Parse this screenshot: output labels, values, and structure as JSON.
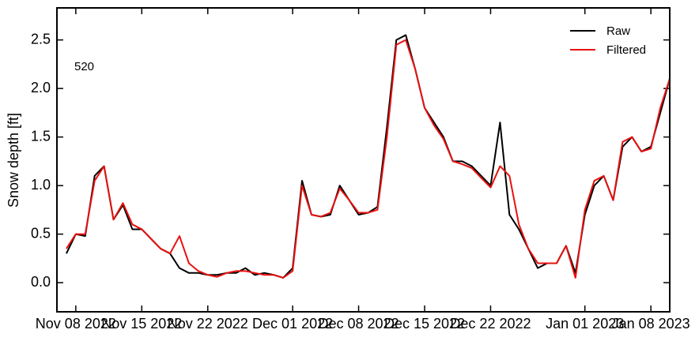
{
  "chart_data": {
    "type": "line",
    "y_label": "Snow depth [ft]",
    "annotation": "520",
    "x": [
      "2022-11-07",
      "2022-11-08",
      "2022-11-09",
      "2022-11-10",
      "2022-11-11",
      "2022-11-12",
      "2022-11-13",
      "2022-11-14",
      "2022-11-15",
      "2022-11-16",
      "2022-11-17",
      "2022-11-18",
      "2022-11-19",
      "2022-11-20",
      "2022-11-21",
      "2022-11-22",
      "2022-11-23",
      "2022-11-24",
      "2022-11-25",
      "2022-11-26",
      "2022-11-27",
      "2022-11-28",
      "2022-11-29",
      "2022-11-30",
      "2022-12-01",
      "2022-12-02",
      "2022-12-03",
      "2022-12-04",
      "2022-12-05",
      "2022-12-06",
      "2022-12-07",
      "2022-12-08",
      "2022-12-09",
      "2022-12-10",
      "2022-12-11",
      "2022-12-12",
      "2022-12-13",
      "2022-12-14",
      "2022-12-15",
      "2022-12-16",
      "2022-12-17",
      "2022-12-18",
      "2022-12-19",
      "2022-12-20",
      "2022-12-21",
      "2022-12-22",
      "2022-12-23",
      "2022-12-24",
      "2022-12-25",
      "2022-12-26",
      "2022-12-27",
      "2022-12-28",
      "2022-12-29",
      "2022-12-30",
      "2022-12-31",
      "2023-01-01",
      "2023-01-02",
      "2023-01-03",
      "2023-01-04",
      "2023-01-05",
      "2023-01-06",
      "2023-01-07",
      "2023-01-08",
      "2023-01-09",
      "2023-01-10"
    ],
    "series": [
      {
        "name": "Raw",
        "color": "#000000",
        "values": [
          0.3,
          0.5,
          0.48,
          1.1,
          1.2,
          0.65,
          0.8,
          0.55,
          0.55,
          0.45,
          0.35,
          0.3,
          0.15,
          0.1,
          0.1,
          0.08,
          0.08,
          0.1,
          0.1,
          0.15,
          0.08,
          0.1,
          0.08,
          0.05,
          0.15,
          1.05,
          0.7,
          0.68,
          0.7,
          1.0,
          0.85,
          0.7,
          0.72,
          0.78,
          1.6,
          2.5,
          2.55,
          2.2,
          1.8,
          1.65,
          1.5,
          1.25,
          1.25,
          1.2,
          1.1,
          1.0,
          1.65,
          0.7,
          0.55,
          0.35,
          0.15,
          0.2,
          0.2,
          0.38,
          0.1,
          0.7,
          1.0,
          1.1,
          0.85,
          1.4,
          1.5,
          1.35,
          1.4,
          1.75,
          2.1
        ]
      },
      {
        "name": "Filtered",
        "color": "#e8110f",
        "values": [
          0.35,
          0.5,
          0.5,
          1.05,
          1.2,
          0.65,
          0.82,
          0.6,
          0.55,
          0.45,
          0.35,
          0.3,
          0.48,
          0.2,
          0.12,
          0.08,
          0.06,
          0.1,
          0.12,
          0.12,
          0.1,
          0.08,
          0.08,
          0.05,
          0.12,
          1.0,
          0.7,
          0.68,
          0.72,
          0.97,
          0.85,
          0.72,
          0.72,
          0.75,
          1.5,
          2.45,
          2.5,
          2.2,
          1.8,
          1.62,
          1.48,
          1.25,
          1.22,
          1.18,
          1.08,
          0.98,
          1.2,
          1.1,
          0.6,
          0.35,
          0.2,
          0.2,
          0.2,
          0.38,
          0.05,
          0.75,
          1.05,
          1.1,
          0.85,
          1.45,
          1.5,
          1.35,
          1.38,
          1.8,
          2.1
        ]
      }
    ],
    "xlim": [
      "2022-11-06",
      "2023-01-10"
    ],
    "xticks": [
      {
        "value": "2022-11-08",
        "label": "Nov 08 2022"
      },
      {
        "value": "2022-11-15",
        "label": "Nov 15 2022"
      },
      {
        "value": "2022-11-22",
        "label": "Nov 22 2022"
      },
      {
        "value": "2022-12-01",
        "label": "Dec 01 2022"
      },
      {
        "value": "2022-12-08",
        "label": "Dec 08 2022"
      },
      {
        "value": "2022-12-15",
        "label": "Dec 15 2022"
      },
      {
        "value": "2022-12-22",
        "label": "Dec 22 2022"
      },
      {
        "value": "2023-01-01",
        "label": "Jan 01 2023"
      },
      {
        "value": "2023-01-08",
        "label": "Jan 08 2023"
      }
    ],
    "ylim": [
      -0.3,
      2.83
    ],
    "yticks": [
      {
        "value": 0,
        "label": "0.0"
      },
      0.5,
      {
        "value": 1,
        "label": "1.0"
      },
      1.5,
      {
        "value": 2,
        "label": "2.0"
      },
      2.5
    ],
    "legend": "upper right"
  }
}
